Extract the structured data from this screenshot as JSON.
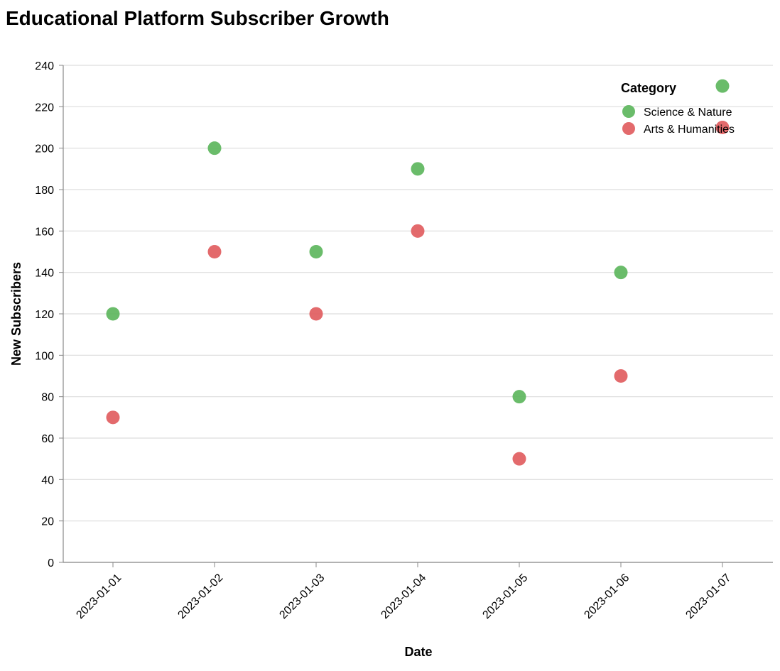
{
  "chart_data": {
    "type": "scatter",
    "title": "Educational Platform Subscriber Growth",
    "xlabel": "Date",
    "ylabel": "New Subscribers",
    "x": [
      "2023-01-01",
      "2023-01-02",
      "2023-01-03",
      "2023-01-04",
      "2023-01-05",
      "2023-01-06",
      "2023-01-07"
    ],
    "ylim": [
      0,
      240
    ],
    "yticks": [
      0,
      20,
      40,
      60,
      80,
      100,
      120,
      140,
      160,
      180,
      200,
      220,
      240
    ],
    "grid": true,
    "legend": {
      "title": "Category",
      "placement": "top-right"
    },
    "series": [
      {
        "name": "Science & Nature",
        "color": "#5ab55a",
        "values": [
          120,
          200,
          150,
          190,
          80,
          140,
          230
        ]
      },
      {
        "name": "Arts & Humanities",
        "color": "#e05a5c",
        "values": [
          70,
          150,
          120,
          160,
          50,
          90,
          210
        ]
      }
    ]
  }
}
